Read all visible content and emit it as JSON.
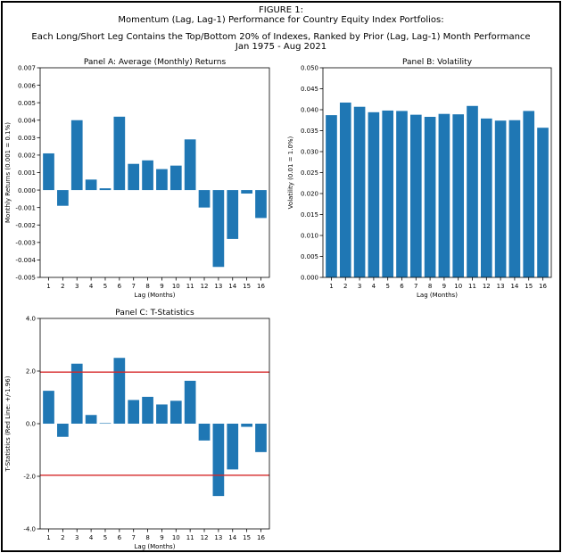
{
  "figure": {
    "label": "FIGURE 1:",
    "title": "Momentum (Lag, Lag-1) Performance for Country Equity Index Portfolios:",
    "subtitle": "Each Long/Short Leg Contains the Top/Bottom 20% of Indexes, Ranked by Prior (Lag, Lag-1) Month Performance",
    "period": "Jan 1975 - Aug 2021"
  },
  "colors": {
    "bar": "#1f77b4",
    "ref_line": "#d62728",
    "axis": "#000000"
  },
  "chart_data": [
    {
      "id": "panelA",
      "type": "bar",
      "title": "Panel A: Average (Monthly) Returns",
      "xlabel": "Lag (Months)",
      "ylabel": "Monthly Returns (0.001 = 0.1%)",
      "categories": [
        "1",
        "2",
        "3",
        "4",
        "5",
        "6",
        "7",
        "8",
        "9",
        "10",
        "11",
        "12",
        "13",
        "14",
        "15",
        "16"
      ],
      "values": [
        0.0021,
        -0.0009,
        0.004,
        0.0006,
        0.0001,
        0.0042,
        0.0015,
        0.0017,
        0.0012,
        0.0014,
        0.0029,
        -0.001,
        -0.0044,
        -0.0028,
        -0.0002,
        -0.0016
      ],
      "ylim": [
        -0.005,
        0.007
      ],
      "yticks": [
        "-0.005",
        "-0.004",
        "-0.003",
        "-0.002",
        "-0.001",
        "0.000",
        "0.001",
        "0.002",
        "0.003",
        "0.004",
        "0.005",
        "0.006",
        "0.007"
      ],
      "ytick_values": [
        -0.005,
        -0.004,
        -0.003,
        -0.002,
        -0.001,
        0,
        0.001,
        0.002,
        0.003,
        0.004,
        0.005,
        0.006,
        0.007
      ],
      "ref_lines": []
    },
    {
      "id": "panelB",
      "type": "bar",
      "title": "Panel B: Volatility",
      "xlabel": "Lag (Months)",
      "ylabel": "Volatility (0.01 = 1.0%)",
      "categories": [
        "1",
        "2",
        "3",
        "4",
        "5",
        "6",
        "7",
        "8",
        "9",
        "10",
        "11",
        "12",
        "13",
        "14",
        "15",
        "16"
      ],
      "values": [
        0.0387,
        0.0417,
        0.0407,
        0.0394,
        0.0398,
        0.0397,
        0.0388,
        0.0383,
        0.039,
        0.0389,
        0.0409,
        0.0379,
        0.0374,
        0.0375,
        0.0397,
        0.0357
      ],
      "ylim": [
        0,
        0.05
      ],
      "yticks": [
        "0.000",
        "0.005",
        "0.010",
        "0.015",
        "0.020",
        "0.025",
        "0.030",
        "0.035",
        "0.040",
        "0.045",
        "0.050"
      ],
      "ytick_values": [
        0,
        0.005,
        0.01,
        0.015,
        0.02,
        0.025,
        0.03,
        0.035,
        0.04,
        0.045,
        0.05
      ],
      "ref_lines": []
    },
    {
      "id": "panelC",
      "type": "bar",
      "title": "Panel C: T-Statistics",
      "xlabel": "Lag (Months)",
      "ylabel": "T-Statistics (Red Line: +/-1.96)",
      "categories": [
        "1",
        "2",
        "3",
        "4",
        "5",
        "6",
        "7",
        "8",
        "9",
        "10",
        "11",
        "12",
        "13",
        "14",
        "15",
        "16"
      ],
      "values": [
        1.25,
        -0.5,
        2.28,
        0.33,
        0.02,
        2.5,
        0.9,
        1.02,
        0.73,
        0.87,
        1.63,
        -0.64,
        -2.75,
        -1.74,
        -0.12,
        -1.08
      ],
      "ylim": [
        -4,
        4
      ],
      "yticks": [
        "-4.0",
        "-2.0",
        "0.0",
        "2.0",
        "4.0"
      ],
      "ytick_values": [
        -4,
        -2,
        0,
        2,
        4
      ],
      "ref_lines": [
        1.96,
        -1.96
      ]
    }
  ]
}
